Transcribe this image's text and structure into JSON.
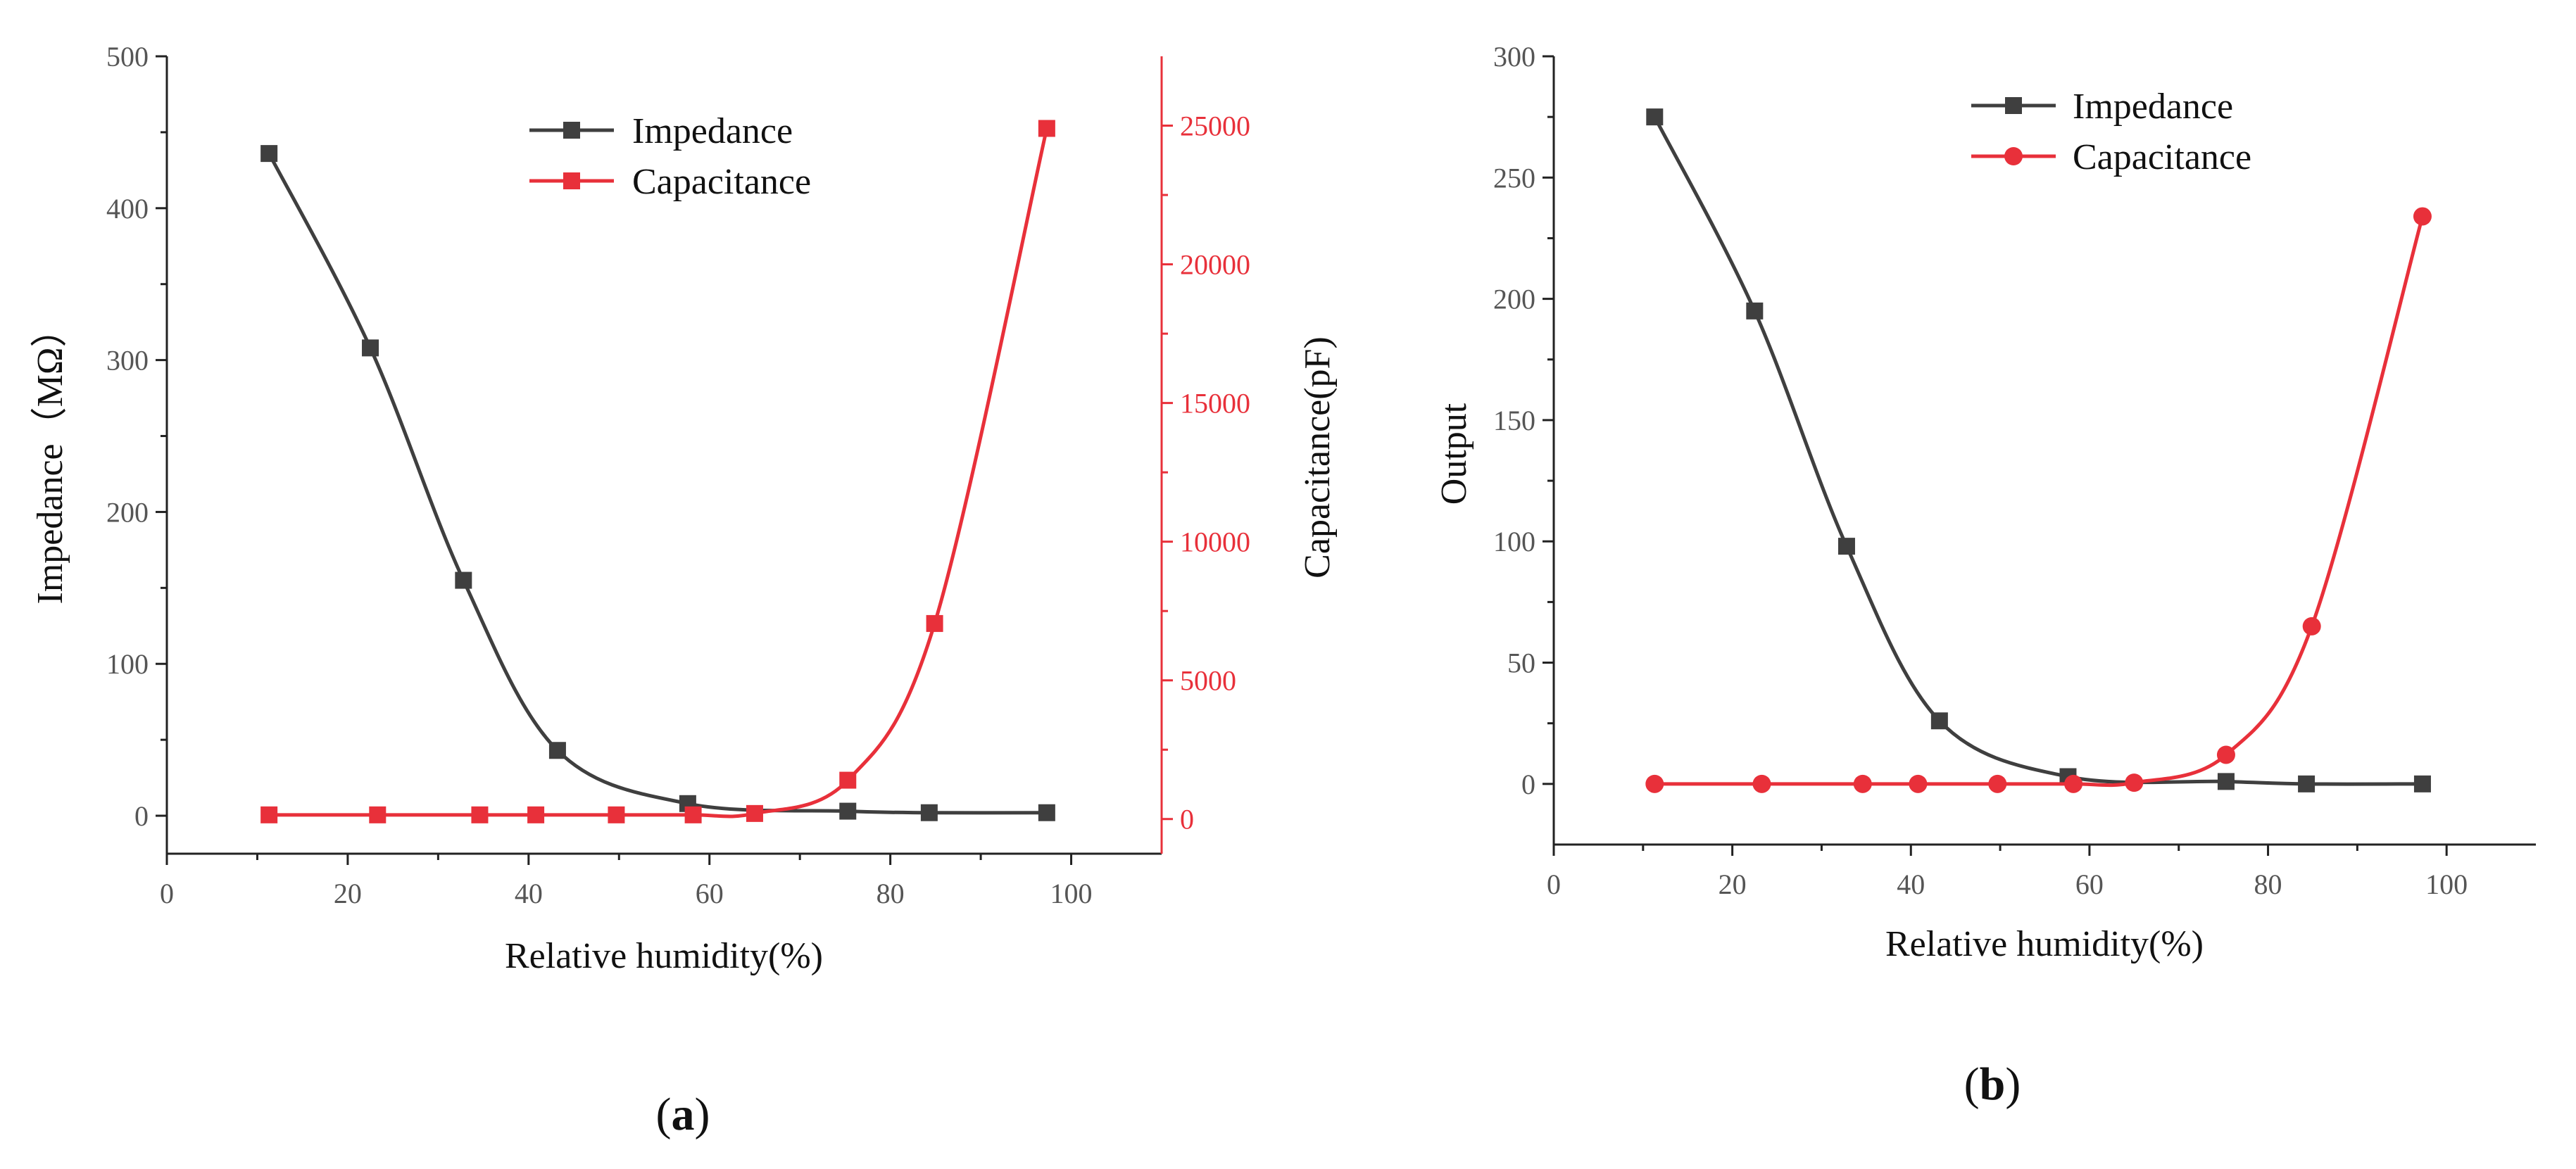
{
  "chart_data": [
    {
      "panel": "a",
      "type": "line",
      "label_open": "(",
      "label_letter": "a",
      "label_close": ")",
      "xlabel": "Relative humidity(%)",
      "ylabel": "Impedance（MΩ）",
      "y2label": "Capacitance(pF)",
      "xlim": [
        0,
        110
      ],
      "xticks": [
        0,
        20,
        40,
        60,
        80,
        100
      ],
      "ylim": [
        -25,
        500
      ],
      "yticks": [
        0,
        100,
        200,
        300,
        400,
        500
      ],
      "y2lim": [
        -1250,
        27500
      ],
      "y2ticks": [
        0,
        5000,
        10000,
        15000,
        20000,
        25000
      ],
      "series": [
        {
          "name": "Impedance",
          "axis": "left",
          "color": "#3f3f3f",
          "marker": "square",
          "x": [
            11.3,
            22.5,
            32.8,
            43.2,
            57.6,
            75.3,
            84.3,
            97.3
          ],
          "y": [
            436,
            308,
            155,
            43,
            8,
            3,
            2,
            2
          ]
        },
        {
          "name": "Capacitance",
          "axis": "right",
          "color": "#e8303a",
          "marker": "square",
          "x": [
            11.3,
            23.3,
            34.6,
            40.8,
            49.7,
            58.2,
            65.0,
            75.3,
            84.9,
            97.3
          ],
          "y": [
            150,
            150,
            150,
            150,
            150,
            150,
            200,
            1400,
            7050,
            24900
          ]
        }
      ]
    },
    {
      "panel": "b",
      "type": "line",
      "label_open": "(",
      "label_letter": "b",
      "label_close": ")",
      "xlabel": "Relative humidity(%)",
      "ylabel": "Output",
      "xlim": [
        0,
        110
      ],
      "xticks": [
        0,
        20,
        40,
        60,
        80,
        100
      ],
      "ylim": [
        -25,
        300
      ],
      "yticks": [
        0,
        50,
        100,
        150,
        200,
        250,
        300
      ],
      "series": [
        {
          "name": "Impedance",
          "color": "#3f3f3f",
          "marker": "square",
          "x": [
            11.3,
            22.5,
            32.8,
            43.2,
            57.6,
            75.3,
            84.3,
            97.3
          ],
          "y": [
            275,
            195,
            98,
            26,
            3,
            1,
            0,
            0
          ]
        },
        {
          "name": "Capacitance",
          "color": "#e8303a",
          "marker": "circle",
          "x": [
            11.3,
            23.3,
            34.6,
            40.8,
            49.7,
            58.2,
            65.0,
            75.3,
            84.9,
            97.3
          ],
          "y": [
            0,
            0,
            0,
            0,
            0,
            0,
            0.5,
            12,
            65,
            234
          ]
        }
      ]
    }
  ]
}
